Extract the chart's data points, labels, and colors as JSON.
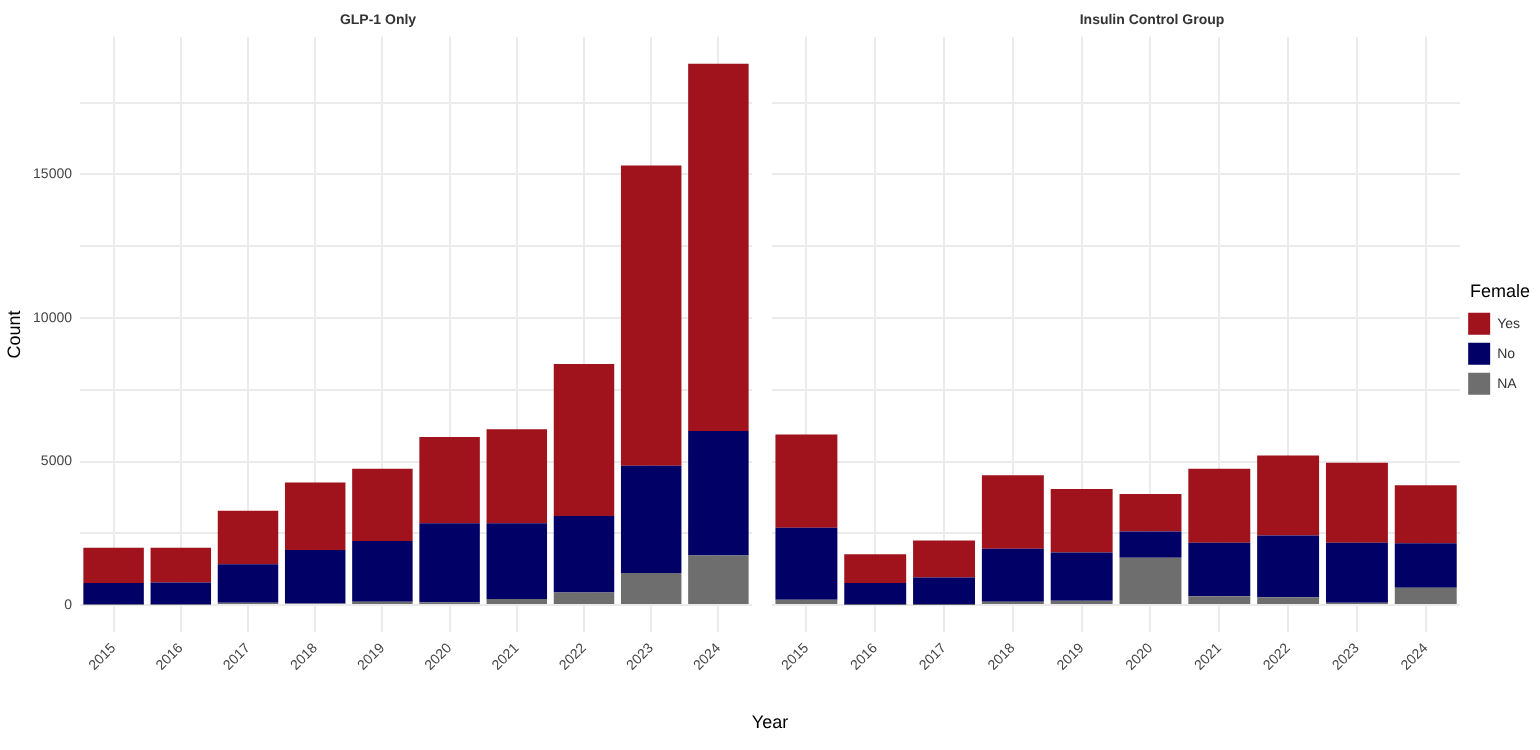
{
  "chart_data": [
    {
      "type": "bar",
      "title": "GLP-1 Only",
      "xlabel": "Year",
      "ylabel": "Count",
      "stacked": true,
      "categories": [
        "2015",
        "2016",
        "2017",
        "2018",
        "2019",
        "2020",
        "2021",
        "2022",
        "2023",
        "2024"
      ],
      "series": [
        {
          "color": "#6e6e6e",
          "values": [
            20,
            20,
            80,
            60,
            120,
            100,
            210,
            440,
            1120,
            1730
          ]
        },
        {
          "color": "#000066",
          "values": [
            750,
            770,
            1340,
            1860,
            2110,
            2750,
            2640,
            2660,
            3730,
            4330
          ]
        },
        {
          "color": "#a0121c",
          "values": [
            1230,
            1210,
            1870,
            2350,
            2520,
            3000,
            3270,
            5300,
            10460,
            12790
          ]
        }
      ],
      "ylim": [
        -940,
        19790
      ],
      "yticks": [
        0,
        {
          "value": 2500,
          "label": null
        },
        5000,
        {
          "value": 7500,
          "label": null
        },
        10000,
        {
          "value": 12500,
          "label": null
        },
        15000,
        {
          "value": 17500,
          "label": null
        }
      ],
      "grid": true,
      "legend": false
    },
    {
      "type": "bar",
      "title": "Insulin Control Group",
      "stacked": true,
      "legend_title": "Female",
      "categories": [
        "2015",
        "2016",
        "2017",
        "2018",
        "2019",
        "2020",
        "2021",
        "2022",
        "2023",
        "2024"
      ],
      "series": [
        {
          "name": "NA",
          "color": "#6e6e6e",
          "values": [
            190,
            10,
            10,
            120,
            150,
            1650,
            310,
            270,
            80,
            600
          ]
        },
        {
          "name": "No",
          "color": "#000066",
          "values": [
            2500,
            760,
            950,
            1840,
            1680,
            910,
            1860,
            2150,
            2090,
            1550
          ]
        },
        {
          "name": "Yes",
          "color": "#a0121c",
          "values": [
            3250,
            1000,
            1290,
            2560,
            2210,
            1310,
            2580,
            2790,
            2790,
            2020
          ]
        }
      ],
      "ylim": [
        -940,
        19790
      ],
      "yticks": [
        0,
        {
          "value": 2500,
          "label": null
        },
        5000,
        {
          "value": 7500,
          "label": null
        },
        10000,
        {
          "value": 12500,
          "label": null
        },
        15000,
        {
          "value": 17500,
          "label": null
        }
      ],
      "grid": true,
      "legend": "right",
      "tick_labels": "x"
    }
  ]
}
